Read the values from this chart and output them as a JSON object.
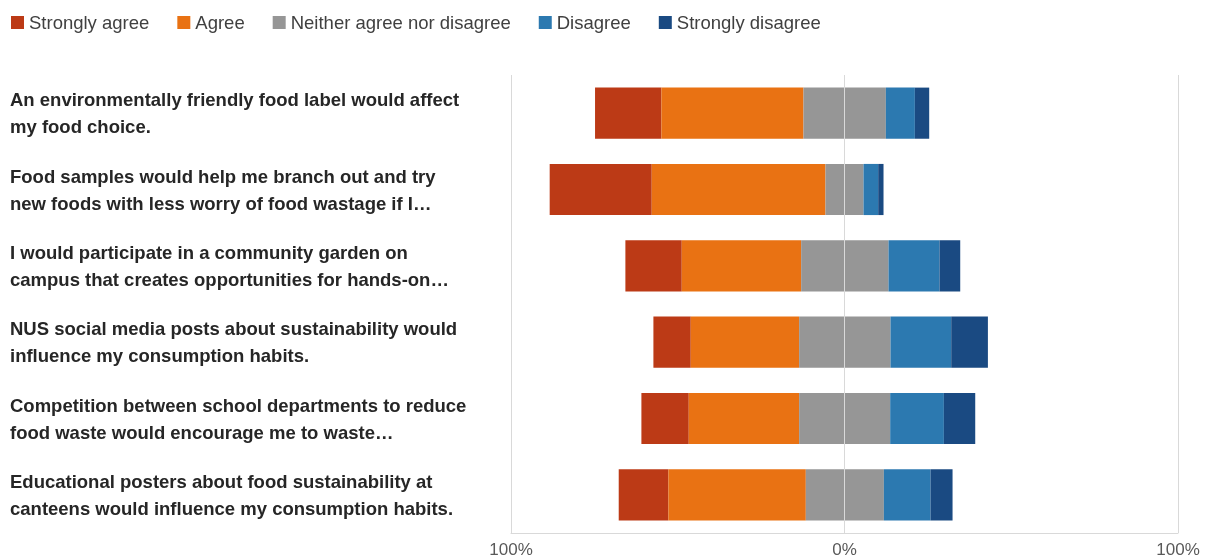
{
  "chart_data": {
    "type": "bar",
    "orientation": "horizontal",
    "categories": [
      "An environmentally friendly food label would affect my food choice.",
      "Food samples would help me branch out and try new foods with less worry of food wastage if I…",
      "I would participate in a community garden on campus that creates opportunities for hands-on…",
      "NUS social media posts about sustainability would influence my consumption habits.",
      "Competition between school departments to reduce food waste would encourage me to waste…",
      "Educational posters about food sustainability at canteens would influence my consumption habits."
    ],
    "series": [
      {
        "name": "Strongly agree",
        "color": "#bc3a16",
        "base": [
          -74.8,
          -88.4,
          -65.7,
          -57.3,
          -60.9,
          -67.7
        ],
        "values": [
          19.9,
          30.6,
          16.9,
          11.2,
          14.2,
          14.9
        ]
      },
      {
        "name": "Agree",
        "color": "#e97213",
        "base": [
          -54.9,
          -57.8,
          -48.8,
          -46.1,
          -46.7,
          -52.8
        ],
        "values": [
          42.6,
          52.1,
          35.8,
          32.5,
          33.1,
          41.2
        ]
      },
      {
        "name": "Neither agree nor disagree",
        "color": "#969696",
        "base": [
          -12.3,
          -5.7,
          -13.0,
          -13.6,
          -13.6,
          -11.6
        ],
        "values": [
          24.7,
          11.4,
          26.2,
          27.4,
          27.3,
          23.4
        ]
      },
      {
        "name": "Disagree",
        "color": "#2c79b0",
        "base": [
          12.4,
          5.7,
          13.2,
          13.8,
          13.7,
          11.8
        ],
        "values": [
          8.7,
          4.4,
          15.3,
          18.2,
          16.1,
          14.0
        ]
      },
      {
        "name": "Strongly disagree",
        "color": "#1a4a82",
        "base": [
          21.1,
          10.1,
          28.5,
          32.0,
          29.8,
          25.8
        ],
        "values": [
          4.3,
          1.6,
          6.2,
          11.0,
          9.4,
          6.6
        ]
      }
    ],
    "xlim": [
      -100,
      100
    ],
    "xticks": [
      {
        "value": -100,
        "label": "100%"
      },
      {
        "value": 0,
        "label": "0%"
      },
      {
        "value": 100,
        "label": "100%"
      }
    ],
    "grid": "x",
    "legend": "top left"
  }
}
